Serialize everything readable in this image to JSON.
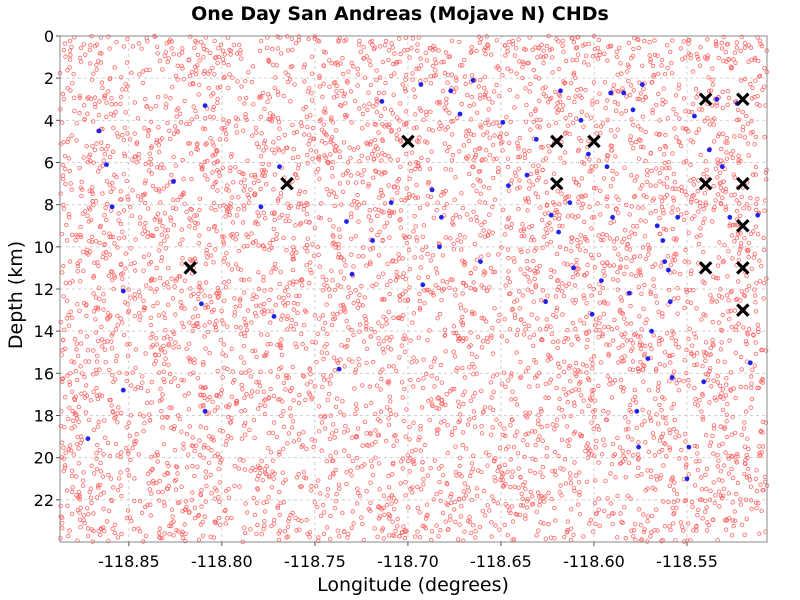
{
  "chart_data": {
    "type": "scatter",
    "title": "One Day San Andreas (Mojave N) CHDs",
    "xlabel": "Longitude (degrees)",
    "ylabel": "Depth (km)",
    "xlim": [
      -118.887,
      -118.507
    ],
    "ylim": [
      0,
      24
    ],
    "y_inverted": true,
    "grid": true,
    "x_ticks": [
      -118.85,
      -118.8,
      -118.75,
      -118.7,
      -118.65,
      -118.6,
      -118.55
    ],
    "x_tick_labels": [
      "-118.85",
      "-118.80",
      "-118.75",
      "-118.70",
      "-118.65",
      "-118.60",
      "-118.55"
    ],
    "y_ticks": [
      0,
      2,
      4,
      6,
      8,
      10,
      12,
      14,
      16,
      18,
      20,
      22
    ],
    "y_tick_labels": [
      "0",
      "2",
      "4",
      "6",
      "8",
      "10",
      "12",
      "14",
      "16",
      "18",
      "20",
      "22"
    ],
    "colors": {
      "background_points": "#ff6666",
      "blue_points": "#2222ee",
      "markers": "#000000",
      "grid": "#d0d0d0",
      "frame": "#888888"
    },
    "background_points_count": 5200,
    "background_point_style": "hollow-circle",
    "series": [
      {
        "marker": "filled-circle",
        "color": "#2222ee",
        "points": [
          [
            -118.866,
            4.5
          ],
          [
            -118.862,
            6.1
          ],
          [
            -118.859,
            8.1
          ],
          [
            -118.853,
            12.1
          ],
          [
            -118.853,
            16.8
          ],
          [
            -118.872,
            19.1
          ],
          [
            -118.826,
            6.9
          ],
          [
            -118.811,
            12.7
          ],
          [
            -118.809,
            17.8
          ],
          [
            -118.809,
            3.3
          ],
          [
            -118.779,
            8.1
          ],
          [
            -118.772,
            13.3
          ],
          [
            -118.769,
            6.2
          ],
          [
            -118.737,
            15.8
          ],
          [
            -118.733,
            8.8
          ],
          [
            -118.73,
            11.3
          ],
          [
            -118.719,
            9.7
          ],
          [
            -118.714,
            3.1
          ],
          [
            -118.709,
            7.9
          ],
          [
            -118.693,
            2.3
          ],
          [
            -118.692,
            11.8
          ],
          [
            -118.687,
            7.3
          ],
          [
            -118.683,
            10.0
          ],
          [
            -118.682,
            8.6
          ],
          [
            -118.677,
            2.6
          ],
          [
            -118.672,
            3.7
          ],
          [
            -118.665,
            2.1
          ],
          [
            -118.661,
            10.7
          ],
          [
            -118.649,
            4.1
          ],
          [
            -118.646,
            7.1
          ],
          [
            -118.636,
            6.6
          ],
          [
            -118.631,
            4.9
          ],
          [
            -118.626,
            12.6
          ],
          [
            -118.623,
            8.5
          ],
          [
            -118.619,
            9.3
          ],
          [
            -118.618,
            2.6
          ],
          [
            -118.613,
            7.9
          ],
          [
            -118.611,
            11.0
          ],
          [
            -118.607,
            4.0
          ],
          [
            -118.603,
            5.6
          ],
          [
            -118.601,
            13.2
          ],
          [
            -118.596,
            11.6
          ],
          [
            -118.593,
            6.2
          ],
          [
            -118.591,
            2.7
          ],
          [
            -118.59,
            8.6
          ],
          [
            -118.584,
            2.7
          ],
          [
            -118.581,
            12.2
          ],
          [
            -118.579,
            3.5
          ],
          [
            -118.577,
            17.8
          ],
          [
            -118.576,
            19.5
          ],
          [
            -118.574,
            2.3
          ],
          [
            -118.571,
            15.3
          ],
          [
            -118.569,
            14.0
          ],
          [
            -118.566,
            9.0
          ],
          [
            -118.563,
            9.7
          ],
          [
            -118.562,
            10.7
          ],
          [
            -118.56,
            11.1
          ],
          [
            -118.559,
            12.6
          ],
          [
            -118.558,
            16.2
          ],
          [
            -118.555,
            8.6
          ],
          [
            -118.55,
            21.0
          ],
          [
            -118.549,
            19.5
          ],
          [
            -118.546,
            3.8
          ],
          [
            -118.541,
            16.4
          ],
          [
            -118.538,
            5.4
          ],
          [
            -118.534,
            3.0
          ],
          [
            -118.531,
            6.2
          ],
          [
            -118.527,
            8.6
          ],
          [
            -118.523,
            3.2
          ],
          [
            -118.516,
            15.5
          ],
          [
            -118.512,
            8.5
          ]
        ]
      },
      {
        "marker": "x",
        "color": "#000000",
        "points": [
          [
            -118.817,
            11.0
          ],
          [
            -118.765,
            7.0
          ],
          [
            -118.7,
            5.0
          ],
          [
            -118.62,
            5.0
          ],
          [
            -118.62,
            7.0
          ],
          [
            -118.6,
            5.0
          ],
          [
            -118.54,
            3.0
          ],
          [
            -118.54,
            7.0
          ],
          [
            -118.54,
            11.0
          ],
          [
            -118.52,
            3.0
          ],
          [
            -118.52,
            7.0
          ],
          [
            -118.52,
            9.0
          ],
          [
            -118.52,
            11.0
          ],
          [
            -118.52,
            13.0
          ]
        ]
      }
    ]
  }
}
